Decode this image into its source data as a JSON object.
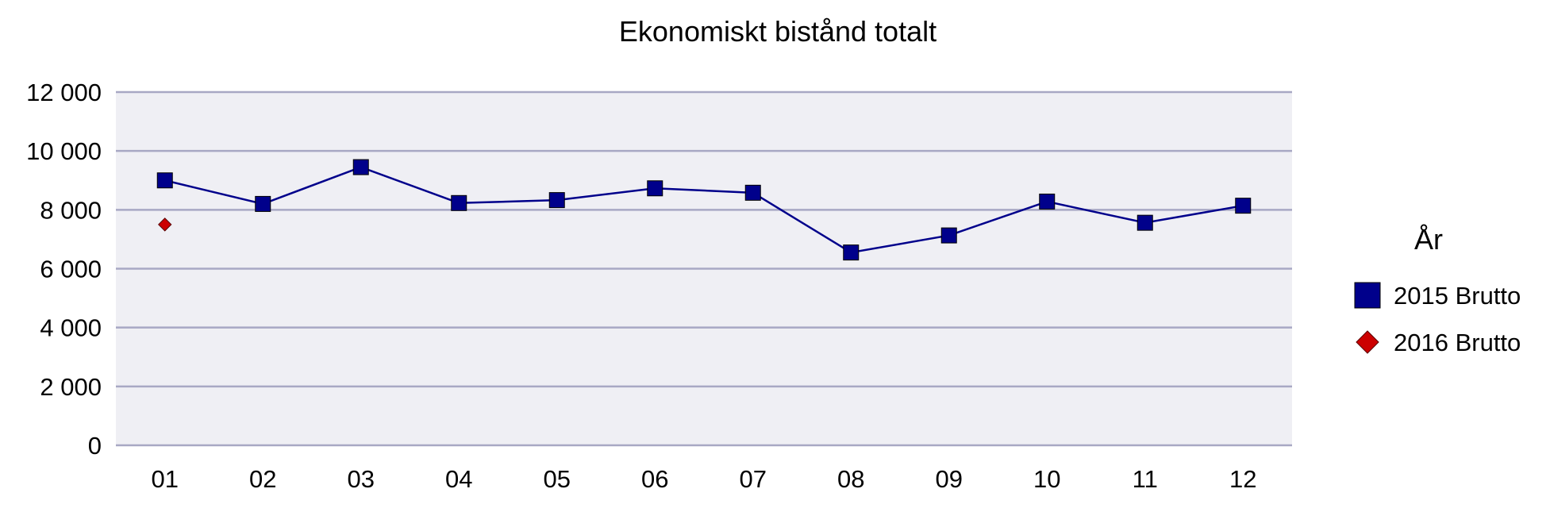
{
  "chart_data": {
    "type": "line",
    "title": "Ekonomiskt bistånd totalt",
    "categories": [
      "01",
      "02",
      "03",
      "04",
      "05",
      "06",
      "07",
      "08",
      "09",
      "10",
      "11",
      "12"
    ],
    "ylim": [
      0,
      12000
    ],
    "yticks": [
      0,
      2000,
      4000,
      6000,
      8000,
      10000,
      12000
    ],
    "ytick_labels": [
      "0",
      "2 000",
      "4 000",
      "6 000",
      "8 000",
      "10 000",
      "12 000"
    ],
    "grid": true,
    "legend_title": "År",
    "legend_position": "right",
    "series": [
      {
        "name": "2015 Brutto",
        "values": [
          9000,
          8200,
          9450,
          8230,
          8330,
          8730,
          8580,
          6550,
          7130,
          8280,
          7560,
          8140
        ],
        "color": "#00008b",
        "marker": "square",
        "line": true
      },
      {
        "name": "2016 Brutto",
        "values": [
          7500,
          null,
          null,
          null,
          null,
          null,
          null,
          null,
          null,
          null,
          null,
          null
        ],
        "color": "#cc0000",
        "marker": "diamond",
        "line": false
      }
    ]
  }
}
